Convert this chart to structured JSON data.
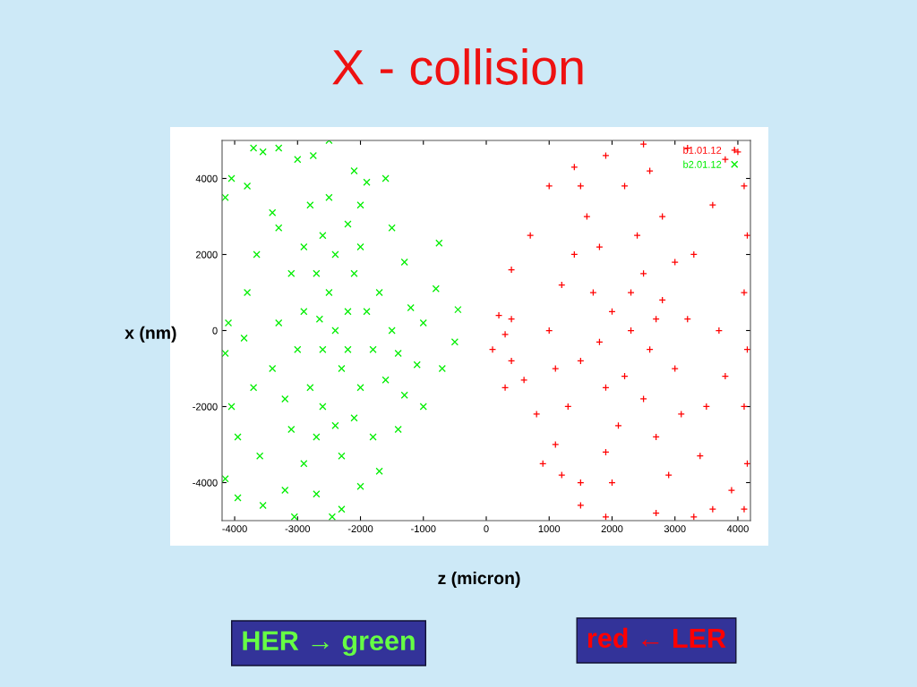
{
  "chart_data": {
    "type": "scatter",
    "title": "X - collision",
    "xlabel": "z (micron)",
    "ylabel": "x (nm)",
    "xlim": [
      -4200,
      4200
    ],
    "ylim": [
      -5000,
      5000
    ],
    "xticks": [
      -4000,
      -3000,
      -2000,
      -1000,
      0,
      1000,
      2000,
      3000,
      4000
    ],
    "yticks": [
      -4000,
      -2000,
      0,
      2000,
      4000
    ],
    "grid": false,
    "legend": "top right",
    "annotations": [
      "HER → green",
      "red ← LER"
    ],
    "series": [
      {
        "name": "b1.01.12",
        "color": "#ff0000",
        "marker": "plus",
        "x": [
          100,
          300,
          400,
          200,
          400,
          600,
          800,
          1100,
          1200,
          1500,
          1900,
          2700,
          3300,
          3600,
          4100,
          4150,
          4100,
          4150,
          4100,
          4150,
          4100,
          3800,
          3200,
          2500,
          1900,
          1400,
          1000,
          700,
          400,
          1500,
          300,
          900,
          3900,
          4000,
          2300,
          2000,
          2600,
          1800,
          2800,
          2200,
          2500,
          1700,
          3000,
          1500,
          3200,
          2400,
          2100,
          2800,
          1900,
          2700,
          3300,
          1400,
          1300,
          3500,
          2900,
          2200,
          1600,
          3600,
          1000,
          3700,
          1200,
          3400,
          2600,
          2000,
          1800,
          3000,
          2500,
          1100,
          3800,
          2300,
          1900,
          2700,
          3100,
          1500
        ],
        "values": [
          -500,
          -100,
          300,
          400,
          -800,
          -1300,
          -2200,
          -3000,
          -3800,
          -4600,
          -4900,
          -4800,
          -4900,
          -4700,
          -4700,
          -3500,
          -2000,
          -500,
          1000,
          2500,
          3800,
          4500,
          4800,
          4900,
          4600,
          4300,
          3800,
          2500,
          1600,
          -4000,
          -1500,
          -3500,
          -4200,
          4700,
          0,
          500,
          -500,
          -300,
          800,
          -1200,
          1500,
          1000,
          -1000,
          -800,
          300,
          2500,
          -2500,
          3000,
          -3200,
          -2800,
          2000,
          2000,
          -2000,
          -2000,
          -3800,
          3800,
          3000,
          3300,
          0,
          0,
          1200,
          -3300,
          4200,
          -4000,
          2200,
          1800,
          -1800,
          -1000,
          -1200,
          1000,
          -1500,
          300,
          -2200,
          3800
        ]
      },
      {
        "name": "b2.01.12",
        "color": "#00ee00",
        "marker": "cross",
        "x": [
          -3700,
          -3550,
          -3300,
          -3000,
          -2500,
          -4050,
          -3800,
          -4150,
          -4100,
          -4150,
          -4050,
          -3950,
          -4150,
          -3950,
          -3550,
          -3050,
          -2450,
          -2300,
          -1700,
          -1400,
          -1000,
          -700,
          -500,
          -450,
          -800,
          -750,
          -1600,
          -1900,
          -2100,
          -2750,
          -3400,
          -3650,
          -3800,
          -3850,
          -3700,
          -3600,
          -3200,
          -2700,
          -2000,
          -1200,
          -1000,
          -1100,
          -1300,
          -1500,
          -1300,
          -2400,
          -2200,
          -2600,
          -2500,
          -2300,
          -2700,
          -2100,
          -2800,
          -2000,
          -2900,
          -1900,
          -3000,
          -1800,
          -2600,
          -2200,
          -2900,
          -2400,
          -2700,
          -2100,
          -3100,
          -1700,
          -3200,
          -1600,
          -2500,
          -2800,
          -2300,
          -2900,
          -3300,
          -1500,
          -2000,
          -2400,
          -2600,
          -3100,
          -1800,
          -2000,
          -3300,
          -1400,
          -3400,
          -2200,
          -2650
        ],
        "values": [
          4800,
          4700,
          4800,
          4500,
          5000,
          4000,
          3800,
          3500,
          200,
          -600,
          -2000,
          -2800,
          -3900,
          -4400,
          -4600,
          -4900,
          -4900,
          -4700,
          -3700,
          -2600,
          -2000,
          -1000,
          -300,
          550,
          1100,
          2300,
          4000,
          3900,
          4200,
          4600,
          3100,
          2000,
          1000,
          -200,
          -1500,
          -3300,
          -4200,
          -4300,
          -4100,
          600,
          200,
          -900,
          -1700,
          2700,
          1800,
          0,
          500,
          -500,
          1000,
          -1000,
          1500,
          1500,
          -1500,
          -1500,
          500,
          500,
          -500,
          -500,
          2500,
          2800,
          2200,
          -2500,
          -2800,
          -2300,
          1500,
          1000,
          -1800,
          -1300,
          3500,
          3300,
          -3300,
          -3500,
          200,
          0,
          2200,
          2000,
          -2000,
          -2600,
          -2800,
          3300,
          2700,
          -600,
          -1000,
          -500,
          300
        ]
      }
    ]
  }
}
